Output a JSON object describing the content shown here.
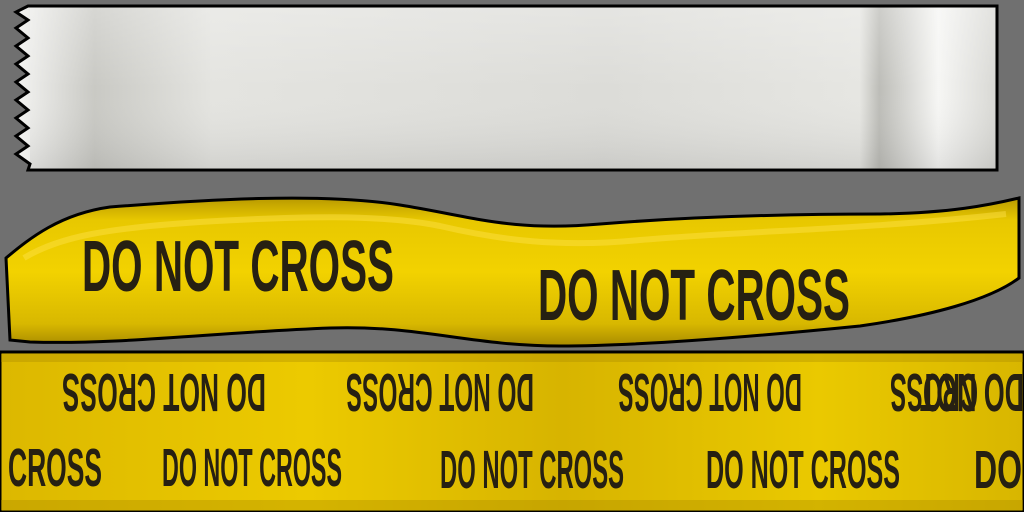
{
  "texture": {
    "background_color": "#707070",
    "strip_top": {
      "colors": {
        "fill_light": "#ececea",
        "fill_mid": "#d6d6d2",
        "border": "#000000"
      }
    },
    "strip_middle": {
      "label_1": "DO NOT CROSS",
      "label_2": "DO NOT CROSS",
      "colors": {
        "yellow_light": "#f2d200",
        "yellow_dark": "#b99a00",
        "text": "#262012",
        "border": "#000000"
      }
    },
    "strip_bottom": {
      "upper_row": [
        "DO NOT CROSS",
        "DO NOT CROSS",
        "DO NOT CROSS",
        "DO NOT"
      ],
      "upper_row_prefix": "CROSS",
      "lower_row_prefix": "CROSS",
      "lower_row": [
        "DO NOT CROSS",
        "DO NOT CROSS",
        "DO NOT CROSS",
        "DO"
      ],
      "colors": {
        "yellow": "#e5c200",
        "text": "#262012"
      }
    }
  }
}
